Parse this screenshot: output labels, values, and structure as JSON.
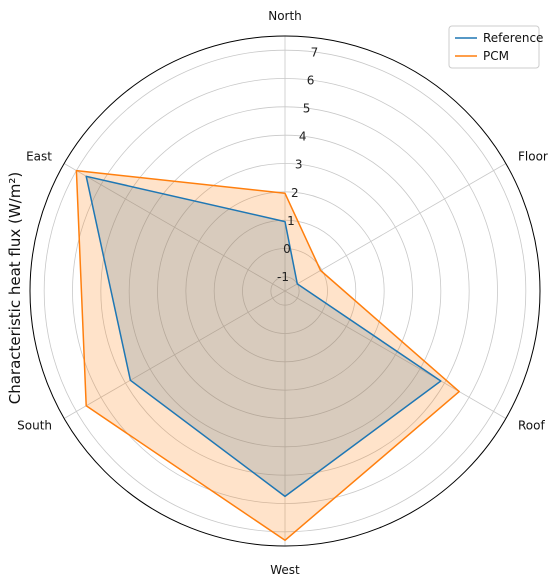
{
  "chart_data": {
    "type": "radar",
    "title": "",
    "ylabel": "Characteristic heat flux (W/m²)",
    "categories": [
      "North",
      "Floor",
      "Roof",
      "West",
      "South",
      "East"
    ],
    "radial_ticks": [
      "-1",
      "0",
      "1",
      "2",
      "3",
      "4",
      "5",
      "6",
      "7"
    ],
    "rlim": [
      -1.5,
      7.5
    ],
    "grid": true,
    "legend_position": "top-right",
    "series": [
      {
        "name": "Reference",
        "color": "#1f77b4",
        "values": [
          0.95,
          -1.0,
          4.85,
          5.75,
          4.8,
          6.6
        ]
      },
      {
        "name": "PCM",
        "color": "#ff7f0e",
        "values": [
          1.95,
          -0.05,
          5.6,
          7.3,
          6.6,
          7.0
        ]
      }
    ]
  }
}
